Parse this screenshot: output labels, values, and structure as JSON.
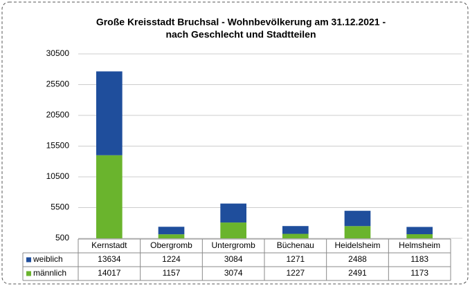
{
  "chart_data": {
    "type": "stacked_bar",
    "title": "Große Kreisstadt Bruchsal - Wohnbevölkerung am 31.12.2021 -",
    "subtitle": "nach Geschlecht und Stadtteilen",
    "categories": [
      "Kernstadt",
      "Obergromb",
      "Untergromb",
      "Büchenau",
      "Heidelsheim",
      "Helmsheim"
    ],
    "series": [
      {
        "name": "männlich",
        "color": "#6ab42d",
        "values": [
          14017,
          1157,
          3074,
          1227,
          2491,
          1173
        ]
      },
      {
        "name": "weiblich",
        "color": "#1f4e9c",
        "values": [
          13634,
          1224,
          3084,
          1271,
          2488,
          1183
        ]
      }
    ],
    "ylim": [
      500,
      30500
    ],
    "yticks": [
      500,
      5500,
      10500,
      15500,
      20500,
      25500,
      30500
    ],
    "grid": true
  }
}
